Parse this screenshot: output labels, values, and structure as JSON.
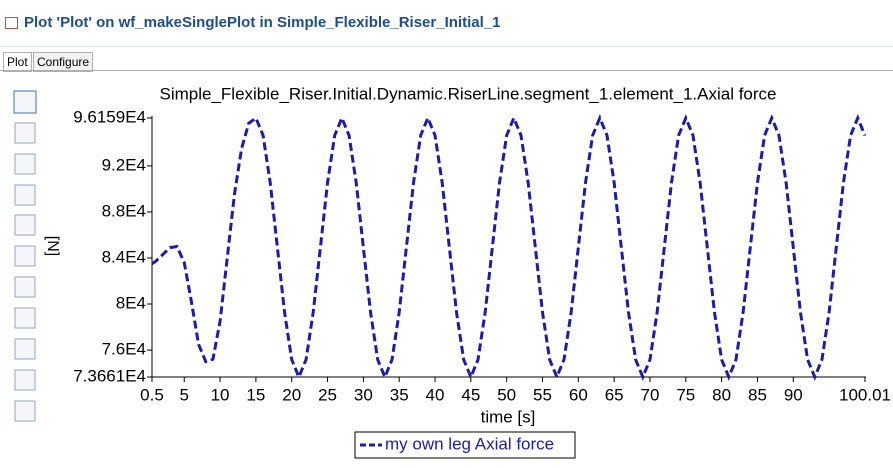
{
  "window": {
    "title": "Plot 'Plot' on wf_makeSinglePlot in Simple_Flexible_Riser_Initial_1",
    "tabs": [
      "Plot",
      "Configure"
    ]
  },
  "chart_data": {
    "type": "line",
    "title": "Simple_Flexible_Riser.Initial.Dynamic.RiserLine.segment_1.element_1.Axial force",
    "x_label": "time [s]",
    "y_label": "[N]",
    "x": [
      0.5,
      1,
      2,
      3,
      4,
      5,
      6,
      7,
      8,
      9,
      10,
      11,
      12,
      13,
      14,
      15,
      16,
      17,
      18,
      19,
      20,
      21,
      22,
      23,
      24,
      25,
      26,
      27,
      28,
      29,
      30,
      31,
      32,
      33,
      34,
      35,
      36,
      37,
      38,
      39,
      40,
      41,
      42,
      43,
      44,
      45,
      46,
      47,
      48,
      49,
      50,
      51,
      52,
      53,
      54,
      55,
      56,
      57,
      58,
      59,
      60,
      61,
      62,
      63,
      64,
      65,
      66,
      67,
      68,
      69,
      70,
      71,
      72,
      73,
      74,
      75,
      76,
      77,
      78,
      79,
      80,
      81,
      82,
      83,
      84,
      85,
      86,
      87,
      88,
      89,
      90,
      91,
      92,
      93,
      94,
      95,
      96,
      97,
      98,
      99,
      100.01
    ],
    "series": [
      {
        "name": "my own leg Axial force",
        "color": "#1c1caa",
        "values": [
          83500,
          83700,
          84300,
          84900,
          85000,
          83600,
          80200,
          76500,
          75000,
          75200,
          78500,
          84000,
          89500,
          93500,
          95700,
          96159,
          94652,
          90535,
          84910,
          79286,
          75168,
          73661,
          75168,
          79286,
          84910,
          90535,
          94652,
          96159,
          94652,
          90535,
          84910,
          79286,
          75168,
          73661,
          75168,
          79286,
          84910,
          90535,
          94652,
          96159,
          94652,
          90535,
          84910,
          79286,
          75168,
          73661,
          75168,
          79286,
          84910,
          90535,
          94652,
          96159,
          94652,
          90535,
          84910,
          79286,
          75168,
          73661,
          75168,
          79286,
          84910,
          90535,
          94652,
          96159,
          94652,
          90535,
          84910,
          79286,
          75168,
          73661,
          75168,
          79286,
          84910,
          90535,
          94652,
          96159,
          94652,
          90535,
          84910,
          79286,
          75168,
          73661,
          75168,
          79286,
          84910,
          90535,
          94652,
          96159,
          94652,
          90535,
          84910,
          79286,
          75168,
          73661,
          75168,
          79286,
          84910,
          90535,
          94652,
          96159,
          94630
        ]
      }
    ],
    "xlim": [
      0.5,
      100.01
    ],
    "xticks": [
      0.5,
      5,
      10,
      15,
      20,
      25,
      30,
      35,
      40,
      45,
      50,
      55,
      60,
      65,
      70,
      75,
      80,
      85,
      90,
      100.01
    ],
    "ylim": [
      73661,
      96159
    ],
    "yticks": [
      {
        "value": 73661,
        "label": "7.3661E4"
      },
      {
        "value": 76000,
        "label": "7.6E4"
      },
      {
        "value": 80000,
        "label": "8E4"
      },
      {
        "value": 84000,
        "label": "8.4E4"
      },
      {
        "value": 88000,
        "label": "8.8E4"
      },
      {
        "value": 92000,
        "label": "9.2E4"
      },
      {
        "value": 96159,
        "label": "9.6159E4"
      }
    ],
    "line_style": "dashed",
    "legend": "bottom"
  }
}
